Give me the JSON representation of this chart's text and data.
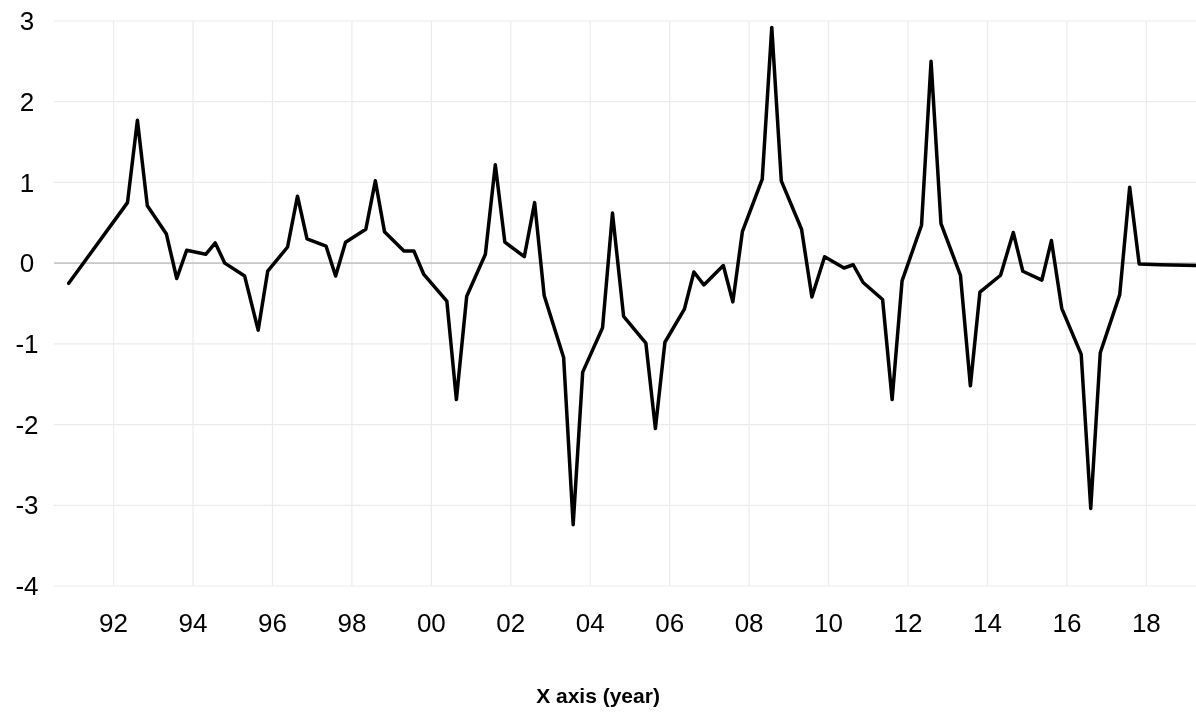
{
  "chart_data": {
    "type": "line",
    "xlabel": "X axis (year)",
    "x": [
      1990.87,
      1992.35,
      1992.6,
      1992.85,
      1993.33,
      1993.59,
      1993.84,
      1994.32,
      1994.56,
      1994.8,
      1995.3,
      1995.64,
      1995.88,
      1996.38,
      1996.63,
      1996.87,
      1997.35,
      1997.59,
      1997.84,
      1998.35,
      1998.59,
      1998.82,
      1999.31,
      1999.56,
      1999.81,
      2000.39,
      2000.63,
      2000.89,
      2001.36,
      2001.61,
      2001.85,
      2002.34,
      2002.6,
      2002.84,
      2003.33,
      2003.57,
      2003.81,
      2004.31,
      2004.56,
      2004.84,
      2005.4,
      2005.64,
      2005.88,
      2006.37,
      2006.61,
      2006.86,
      2007.35,
      2007.59,
      2007.83,
      2008.33,
      2008.57,
      2008.81,
      2009.32,
      2009.58,
      2009.9,
      2010.39,
      2010.62,
      2010.87,
      2011.36,
      2011.6,
      2011.85,
      2012.34,
      2012.58,
      2012.83,
      2013.32,
      2013.57,
      2013.81,
      2014.33,
      2014.65,
      2014.89,
      2015.37,
      2015.61,
      2015.87,
      2016.36,
      2016.6,
      2016.84,
      2017.33,
      2017.58,
      2017.82,
      2018.35,
      2019.25
    ],
    "series": [
      {
        "color": "#000000",
        "values": [
          -0.25,
          0.75,
          1.77,
          0.71,
          0.36,
          -0.19,
          0.16,
          0.11,
          0.25,
          0.0,
          -0.16,
          -0.83,
          -0.1,
          0.2,
          0.83,
          0.3,
          0.21,
          -0.16,
          0.26,
          0.42,
          1.02,
          0.39,
          0.15,
          0.15,
          -0.14,
          -0.47,
          -1.69,
          -0.41,
          0.11,
          1.22,
          0.26,
          0.08,
          0.75,
          -0.4,
          -1.17,
          -3.24,
          -1.35,
          -0.8,
          0.62,
          -0.66,
          -0.99,
          -2.05,
          -0.98,
          -0.57,
          -0.11,
          -0.27,
          -0.03,
          -0.48,
          0.39,
          1.04,
          2.92,
          1.02,
          0.42,
          -0.42,
          0.08,
          -0.06,
          -0.02,
          -0.24,
          -0.45,
          -1.69,
          -0.22,
          0.47,
          2.5,
          0.49,
          -0.15,
          -1.52,
          -0.36,
          -0.15,
          0.38,
          -0.1,
          -0.21,
          0.28,
          -0.56,
          -1.13,
          -3.04,
          -1.11,
          -0.39,
          0.94,
          -0.01,
          -0.02,
          -0.03
        ]
      }
    ],
    "xlim": [
      1990.5,
      2019.25
    ],
    "xticks": [
      {
        "value": 1992,
        "label": "92"
      },
      {
        "value": 1994,
        "label": "94"
      },
      {
        "value": 1996,
        "label": "96"
      },
      {
        "value": 1998,
        "label": "98"
      },
      {
        "value": 2000,
        "label": "00"
      },
      {
        "value": 2002,
        "label": "02"
      },
      {
        "value": 2004,
        "label": "04"
      },
      {
        "value": 2006,
        "label": "06"
      },
      {
        "value": 2008,
        "label": "08"
      },
      {
        "value": 2010,
        "label": "10"
      },
      {
        "value": 2012,
        "label": "12"
      },
      {
        "value": 2014,
        "label": "14"
      },
      {
        "value": 2016,
        "label": "16"
      },
      {
        "value": 2018,
        "label": "18"
      }
    ],
    "ylim": [
      -4,
      3
    ],
    "yticks": [
      -4,
      -3,
      -2,
      -1,
      0,
      1,
      2,
      3
    ],
    "ref_lines": [
      {
        "axis": "y",
        "value": 0,
        "color": "#c8c8c8"
      }
    ],
    "grid": true,
    "marker": "none",
    "line_style": "solid"
  }
}
